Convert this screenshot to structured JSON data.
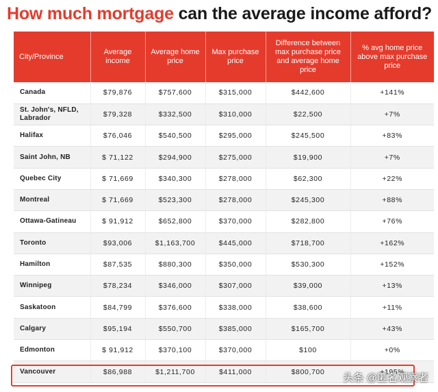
{
  "title_highlight": "How much mortgage",
  "title_rest": " can the average income afford?",
  "headers": [
    "City/Province",
    "Average income",
    "Average home price",
    "Max purchase price",
    "Difference between max purchase price and average home price",
    "% avg home price above max purchase price"
  ],
  "rows": [
    [
      "Canada",
      "$79,876",
      "$757,600",
      "$315,000",
      "$442,600",
      "+141%"
    ],
    [
      "St. John's, NFLD, Labrador",
      "$79,328",
      "$332,500",
      "$310,000",
      "$22,500",
      "+7%"
    ],
    [
      "Halifax",
      "$76,046",
      "$540,500",
      "$295,000",
      "$245,500",
      "+83%"
    ],
    [
      "Saint John, NB",
      "$ 71,122",
      "$294,900",
      "$275,000",
      "$19,900",
      "+7%"
    ],
    [
      "Quebec City",
      "$ 71,669",
      "$340,300",
      "$278,000",
      "$62,300",
      "+22%"
    ],
    [
      "Montreal",
      "$ 71,669",
      "$523,300",
      "$278,000",
      "$245,300",
      "+88%"
    ],
    [
      "Ottawa-Gatineau",
      "$ 91,912",
      "$652,800",
      "$370,000",
      "$282,800",
      "+76%"
    ],
    [
      "Toronto",
      "$93,006",
      "$1,163,700",
      "$445,000",
      "$718,700",
      "+162%"
    ],
    [
      "Hamilton",
      "$87,535",
      "$880,300",
      "$350,000",
      "$530,300",
      "+152%"
    ],
    [
      "Winnipeg",
      "$78,234",
      "$346,000",
      "$307,000",
      "$39,000",
      "+13%"
    ],
    [
      "Saskatoon",
      "$84,799",
      "$376,600",
      "$338,000",
      "$38,600",
      "+11%"
    ],
    [
      "Calgary",
      "$95,194",
      "$550,700",
      "$385,000",
      "$165,700",
      "+43%"
    ],
    [
      "Edmonton",
      "$ 91,912",
      "$370,100",
      "$370,000",
      "$100",
      "+0%"
    ],
    [
      "Vancouver",
      "$86,988",
      "$1,211,700",
      "$411,000",
      "$800,700",
      "+195%"
    ]
  ],
  "highlight_color": "#e53b2c",
  "watermark": "头条 @匿名观察者"
}
